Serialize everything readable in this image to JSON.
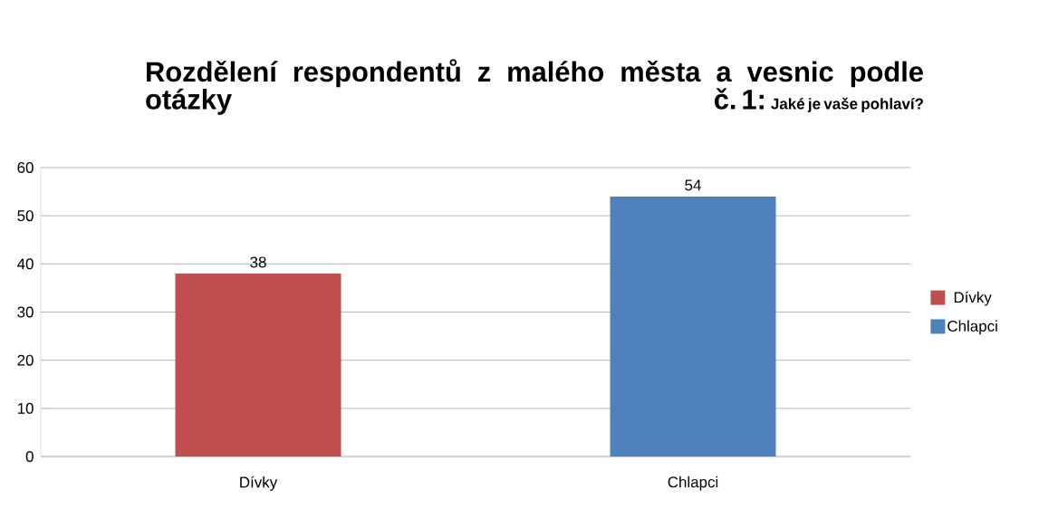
{
  "chart_data": {
    "type": "bar",
    "title": "Rozdělení respondentů z malého města a vesnic podle otázky č. 1:",
    "subtitle": "Jaké je vaše pohlaví?",
    "categories": [
      "Dívky",
      "Chlapci"
    ],
    "series": [
      {
        "name": "Dívky",
        "color": "#c0504d",
        "values": [
          38,
          null
        ]
      },
      {
        "name": "Chlapci",
        "color": "#4f81bd",
        "values": [
          null,
          54
        ]
      }
    ],
    "ylim": [
      0,
      60
    ],
    "yticks": [
      0,
      10,
      20,
      30,
      40,
      50,
      60
    ],
    "grid": "y",
    "data_labels": true,
    "legend": "right"
  }
}
